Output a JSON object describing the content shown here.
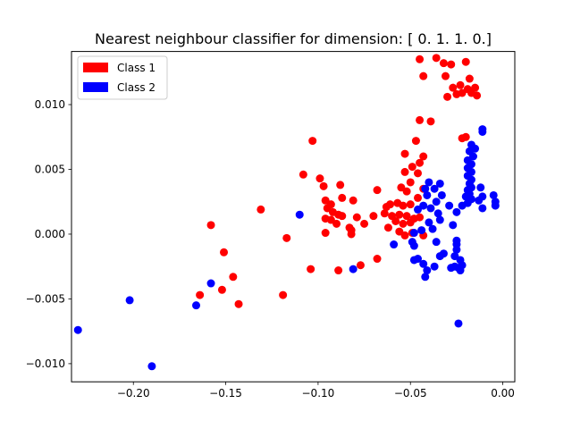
{
  "chart_data": {
    "type": "scatter",
    "title": "Nearest neighbour classifier for dimension: [ 0.  1.  1.  0.]",
    "xlabel": "",
    "ylabel": "",
    "xlim": [
      -0.2335,
      0.0065
    ],
    "ylim": [
      -0.0114,
      0.0141
    ],
    "x_ticks": [
      -0.2,
      -0.15,
      -0.1,
      -0.05,
      0.0
    ],
    "x_tick_labels": [
      "−0.20",
      "−0.15",
      "−0.10",
      "−0.05",
      "0.00"
    ],
    "y_ticks": [
      -0.01,
      -0.005,
      0.0,
      0.005,
      0.01
    ],
    "y_tick_labels": [
      "−0.010",
      "−0.005",
      "0.000",
      "0.005",
      "0.010"
    ],
    "grid": false,
    "legend_position": "top-left",
    "series": [
      {
        "name": "Class 1",
        "color": "#ff0000",
        "points": [
          [
            -0.045,
            0.0135
          ],
          [
            -0.036,
            0.0136
          ],
          [
            -0.032,
            0.0132
          ],
          [
            -0.028,
            0.0131
          ],
          [
            -0.02,
            0.0133
          ],
          [
            -0.043,
            0.0122
          ],
          [
            -0.031,
            0.0122
          ],
          [
            -0.018,
            0.012
          ],
          [
            -0.027,
            0.0113
          ],
          [
            -0.023,
            0.0115
          ],
          [
            -0.019,
            0.0112
          ],
          [
            -0.015,
            0.0113
          ],
          [
            -0.025,
            0.0108
          ],
          [
            -0.022,
            0.0109
          ],
          [
            -0.017,
            0.0109
          ],
          [
            -0.014,
            0.0107
          ],
          [
            -0.03,
            0.0106
          ],
          [
            -0.045,
            0.0088
          ],
          [
            -0.039,
            0.0087
          ],
          [
            -0.022,
            0.0074
          ],
          [
            -0.02,
            0.0075
          ],
          [
            -0.047,
            0.0072
          ],
          [
            -0.103,
            0.0072
          ],
          [
            -0.053,
            0.0062
          ],
          [
            -0.049,
            0.0052
          ],
          [
            -0.043,
            0.006
          ],
          [
            -0.045,
            0.0055
          ],
          [
            -0.046,
            0.0047
          ],
          [
            -0.053,
            0.0048
          ],
          [
            -0.05,
            0.004
          ],
          [
            -0.055,
            0.0036
          ],
          [
            -0.052,
            0.0033
          ],
          [
            -0.043,
            0.0035
          ],
          [
            -0.108,
            0.0046
          ],
          [
            -0.099,
            0.0043
          ],
          [
            -0.097,
            0.0037
          ],
          [
            -0.088,
            0.0038
          ],
          [
            -0.068,
            0.0034
          ],
          [
            -0.046,
            0.0028
          ],
          [
            -0.131,
            0.0019
          ],
          [
            -0.096,
            0.0026
          ],
          [
            -0.093,
            0.0023
          ],
          [
            -0.087,
            0.0028
          ],
          [
            -0.081,
            0.0026
          ],
          [
            -0.063,
            0.0021
          ],
          [
            -0.061,
            0.0023
          ],
          [
            -0.057,
            0.0024
          ],
          [
            -0.054,
            0.0022
          ],
          [
            -0.05,
            0.0023
          ],
          [
            -0.095,
            0.002
          ],
          [
            -0.092,
            0.0017
          ],
          [
            -0.089,
            0.0015
          ],
          [
            -0.096,
            0.0012
          ],
          [
            -0.093,
            0.0011
          ],
          [
            -0.087,
            0.0014
          ],
          [
            -0.079,
            0.0013
          ],
          [
            -0.07,
            0.0014
          ],
          [
            -0.064,
            0.0016
          ],
          [
            -0.06,
            0.0014
          ],
          [
            -0.056,
            0.0015
          ],
          [
            -0.052,
            0.0014
          ],
          [
            -0.048,
            0.0012
          ],
          [
            -0.045,
            0.0013
          ],
          [
            -0.058,
            0.001
          ],
          [
            -0.054,
            0.0008
          ],
          [
            -0.05,
            0.0009
          ],
          [
            -0.09,
            0.0008
          ],
          [
            -0.075,
            0.0008
          ],
          [
            -0.083,
            0.0005
          ],
          [
            -0.082,
            0.0003
          ],
          [
            -0.062,
            0.0005
          ],
          [
            -0.056,
            0.0002
          ],
          [
            -0.049,
            0.0001
          ],
          [
            -0.158,
            0.0007
          ],
          [
            -0.096,
            0.0001
          ],
          [
            -0.082,
            0.0
          ],
          [
            -0.053,
            -0.0001
          ],
          [
            -0.043,
            -0.0001
          ],
          [
            -0.117,
            -0.0003
          ],
          [
            -0.151,
            -0.0014
          ],
          [
            -0.068,
            -0.0019
          ],
          [
            -0.077,
            -0.0024
          ],
          [
            -0.104,
            -0.0027
          ],
          [
            -0.089,
            -0.0028
          ],
          [
            -0.146,
            -0.0033
          ],
          [
            -0.152,
            -0.0043
          ],
          [
            -0.119,
            -0.0047
          ],
          [
            -0.164,
            -0.0047
          ],
          [
            -0.143,
            -0.0054
          ]
        ]
      },
      {
        "name": "Class 2",
        "color": "#0000ff",
        "points": [
          [
            -0.011,
            0.0081
          ],
          [
            -0.011,
            0.0079
          ],
          [
            -0.017,
            0.0069
          ],
          [
            -0.015,
            0.0066
          ],
          [
            -0.018,
            0.0064
          ],
          [
            -0.016,
            0.006
          ],
          [
            -0.019,
            0.0057
          ],
          [
            -0.017,
            0.0054
          ],
          [
            -0.019,
            0.0051
          ],
          [
            -0.017,
            0.0048
          ],
          [
            -0.019,
            0.0045
          ],
          [
            -0.017,
            0.0042
          ],
          [
            -0.018,
            0.0039
          ],
          [
            -0.017,
            0.0036
          ],
          [
            -0.019,
            0.0034
          ],
          [
            -0.018,
            0.0031
          ],
          [
            -0.02,
            0.0029
          ],
          [
            -0.017,
            0.0027
          ],
          [
            -0.019,
            0.0024
          ],
          [
            -0.012,
            0.0036
          ],
          [
            -0.011,
            0.0029
          ],
          [
            -0.013,
            0.0026
          ],
          [
            -0.005,
            0.003
          ],
          [
            -0.004,
            0.0025
          ],
          [
            -0.004,
            0.0022
          ],
          [
            -0.011,
            0.002
          ],
          [
            -0.022,
            0.0022
          ],
          [
            -0.025,
            0.0017
          ],
          [
            -0.029,
            0.0022
          ],
          [
            -0.033,
            0.003
          ],
          [
            -0.034,
            0.0039
          ],
          [
            -0.04,
            0.004
          ],
          [
            -0.037,
            0.0035
          ],
          [
            -0.042,
            0.0035
          ],
          [
            -0.041,
            0.003
          ],
          [
            -0.036,
            0.0025
          ],
          [
            -0.039,
            0.002
          ],
          [
            -0.043,
            0.0022
          ],
          [
            -0.046,
            0.0019
          ],
          [
            -0.035,
            0.0016
          ],
          [
            -0.034,
            0.0011
          ],
          [
            -0.04,
            0.0009
          ],
          [
            -0.027,
            0.0007
          ],
          [
            -0.038,
            0.0004
          ],
          [
            -0.044,
            0.0003
          ],
          [
            -0.048,
            0.0001
          ],
          [
            -0.11,
            0.0015
          ],
          [
            -0.059,
            -0.0008
          ],
          [
            -0.049,
            -0.0006
          ],
          [
            -0.048,
            -0.0009
          ],
          [
            -0.036,
            -0.0006
          ],
          [
            -0.025,
            -0.0005
          ],
          [
            -0.025,
            -0.0008
          ],
          [
            -0.025,
            -0.0012
          ],
          [
            -0.034,
            -0.0017
          ],
          [
            -0.032,
            -0.0015
          ],
          [
            -0.026,
            -0.0017
          ],
          [
            -0.048,
            -0.002
          ],
          [
            -0.046,
            -0.0019
          ],
          [
            -0.043,
            -0.0023
          ],
          [
            -0.037,
            -0.0025
          ],
          [
            -0.028,
            -0.0026
          ],
          [
            -0.026,
            -0.0025
          ],
          [
            -0.024,
            -0.0026
          ],
          [
            -0.023,
            -0.0028
          ],
          [
            -0.022,
            -0.0024
          ],
          [
            -0.023,
            -0.002
          ],
          [
            -0.041,
            -0.0028
          ],
          [
            -0.042,
            -0.0033
          ],
          [
            -0.081,
            -0.0027
          ],
          [
            -0.158,
            -0.0038
          ],
          [
            -0.166,
            -0.0055
          ],
          [
            -0.202,
            -0.0051
          ],
          [
            -0.024,
            -0.0069
          ],
          [
            -0.23,
            -0.0074
          ],
          [
            -0.19,
            -0.0102
          ]
        ]
      }
    ]
  }
}
